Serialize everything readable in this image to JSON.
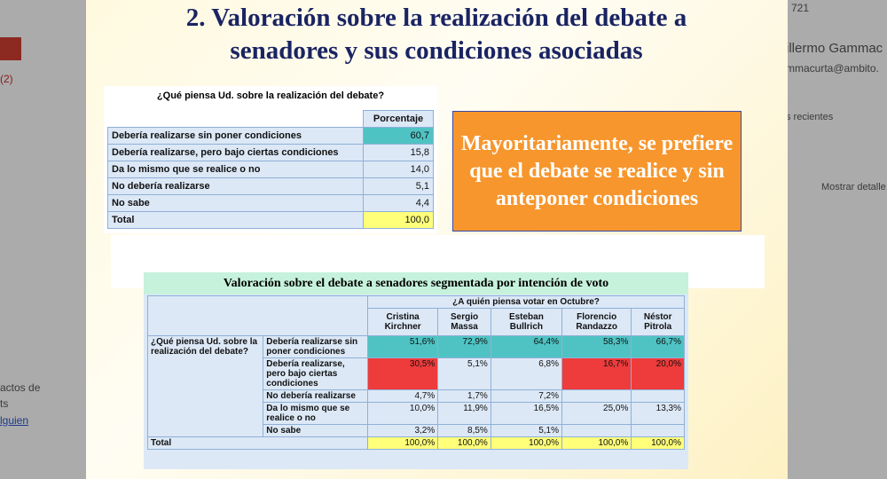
{
  "gmail": {
    "left": [
      "(2)",
      "actos de",
      "ts",
      "lguien"
    ],
    "right": [
      "721",
      "illermo Gammac",
      "mmacurta@ambito.",
      "s recientes",
      "Mostrar detalle"
    ]
  },
  "slide": {
    "title": "2. Valoración sobre la realización del debate a senadores y sus condiciones asociadas",
    "table1": {
      "caption": "¿Qué piensa Ud. sobre la realización del debate?",
      "header": "Porcentaje",
      "rows": [
        [
          "Debería realizarse sin poner condiciones",
          "60,7"
        ],
        [
          "Debería realizarse, pero bajo ciertas condiciones",
          "15,8"
        ],
        [
          "Da lo mismo que se realice o no",
          "14,0"
        ],
        [
          "No debería realizarse",
          "5,1"
        ],
        [
          "No sabe",
          "4,4"
        ],
        [
          "Total",
          "100,0"
        ]
      ]
    },
    "highlight": "Mayoritariamente, se prefiere que el debate se realice y sin anteponer condiciones",
    "table2": {
      "title": "Valoración sobre el debate a senadores segmentada por intención de voto",
      "group_header": "¿A quién piensa votar en Octubre?",
      "question": "¿Qué piensa Ud. sobre la realización del debate?",
      "columns": [
        "Cristina Kirchner",
        "Sergio Massa",
        "Esteban Bullrich",
        "Florencio Randazzo",
        "Néstor Pitrola"
      ],
      "rows": [
        {
          "label": "Debería realizarse sin poner condiciones",
          "values": [
            "51,6%",
            "72,9%",
            "64,4%",
            "58,3%",
            "66,7%"
          ]
        },
        {
          "label": "Debería realizarse, pero bajo ciertas condiciones",
          "values": [
            "30,5%",
            "5,1%",
            "6,8%",
            "16,7%",
            "20,0%"
          ]
        },
        {
          "label": "No debería realizarse",
          "values": [
            "4,7%",
            "1,7%",
            "7,2%",
            null,
            null
          ]
        },
        {
          "label": "Da lo mismo que se realice o no",
          "values": [
            "10,0%",
            "11,9%",
            "16,5%",
            "25,0%",
            "13,3%"
          ]
        },
        {
          "label": "No sabe",
          "values": [
            "3,2%",
            "8,5%",
            "5,1%",
            null,
            null
          ]
        }
      ],
      "total": {
        "label": "Total",
        "values": [
          "100,0%",
          "100,0%",
          "100,0%",
          "100,0%",
          "100,0%"
        ]
      }
    }
  }
}
